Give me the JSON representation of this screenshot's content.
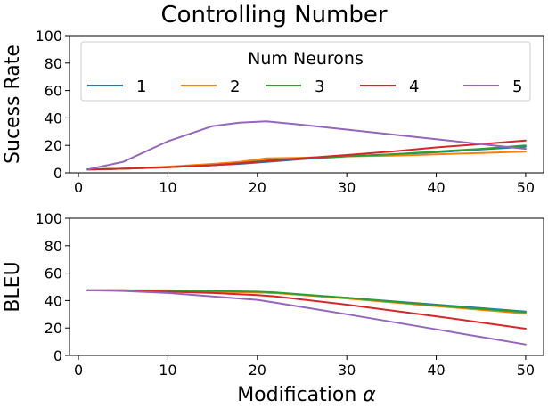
{
  "chart_data": {
    "title": "Controlling Number",
    "legend": {
      "title": "Num Neurons",
      "placement": "top"
    },
    "xlabel_text": "Modification ",
    "xlabel_symbol": "α",
    "xlim": [
      -1,
      52
    ],
    "xticks": [
      "0",
      "10",
      "20",
      "30",
      "40",
      "50"
    ],
    "panels": [
      {
        "type": "line",
        "ylabel": "Sucess Rate",
        "ylim": [
          0,
          100
        ],
        "yticks": [
          "0",
          "20",
          "40",
          "60",
          "80",
          "100"
        ],
        "series": [
          {
            "name": "1",
            "color": "#1f77b4",
            "x": [
              1,
              5,
              10,
              15,
              18,
              21,
              25,
              30,
              35,
              40,
              45,
              50
            ],
            "y": [
              2.5,
              3,
              4,
              5.5,
              6.5,
              8,
              10,
              12,
              13.5,
              15,
              17,
              19
            ]
          },
          {
            "name": "2",
            "color": "#ff7f0e",
            "x": [
              1,
              5,
              10,
              15,
              18,
              21,
              25,
              30,
              35,
              40,
              45,
              50
            ],
            "y": [
              2.5,
              3,
              4.5,
              6.5,
              8,
              10.5,
              11,
              12,
              12.5,
              13.5,
              14.5,
              15.5
            ]
          },
          {
            "name": "3",
            "color": "#2ca02c",
            "x": [
              1,
              5,
              10,
              15,
              18,
              21,
              25,
              30,
              35,
              40,
              45,
              50
            ],
            "y": [
              2.5,
              3,
              4,
              5.5,
              7,
              9,
              10.5,
              12,
              13.5,
              15.5,
              17.5,
              20
            ]
          },
          {
            "name": "4",
            "color": "#d62728",
            "x": [
              1,
              5,
              10,
              15,
              18,
              21,
              25,
              30,
              35,
              40,
              45,
              50
            ],
            "y": [
              2.5,
              3,
              4,
              5.5,
              7,
              8.5,
              10.5,
              13,
              15.5,
              18.5,
              21,
              23.5
            ]
          },
          {
            "name": "5",
            "color": "#9467bd",
            "x": [
              1,
              5,
              10,
              15,
              18,
              21,
              25,
              30,
              35,
              40,
              45,
              50
            ],
            "y": [
              2.5,
              8,
              23,
              34,
              36.5,
              37.5,
              35,
              31.5,
              28,
              24.5,
              21,
              17.5
            ]
          }
        ]
      },
      {
        "type": "line",
        "ylabel": "BLEU",
        "ylim": [
          0,
          100
        ],
        "yticks": [
          "0",
          "20",
          "40",
          "60",
          "80",
          "100"
        ],
        "series": [
          {
            "name": "1",
            "color": "#1f77b4",
            "x": [
              1,
              5,
              10,
              15,
              20,
              22,
              30,
              40,
              50
            ],
            "y": [
              47.5,
              47.5,
              47,
              46.5,
              46,
              45.5,
              42,
              37,
              32
            ]
          },
          {
            "name": "2",
            "color": "#ff7f0e",
            "x": [
              1,
              5,
              10,
              15,
              20,
              22,
              30,
              40,
              50
            ],
            "y": [
              47.5,
              47.5,
              47,
              46.5,
              46,
              45.5,
              41.5,
              36,
              30.5
            ]
          },
          {
            "name": "3",
            "color": "#2ca02c",
            "x": [
              1,
              5,
              10,
              15,
              20,
              22,
              30,
              40,
              50
            ],
            "y": [
              47.5,
              47.5,
              47.5,
              47,
              46.5,
              46,
              42,
              36.5,
              31.5
            ]
          },
          {
            "name": "4",
            "color": "#d62728",
            "x": [
              1,
              5,
              10,
              15,
              20,
              22,
              30,
              40,
              50
            ],
            "y": [
              47.5,
              47.5,
              46.5,
              45.5,
              44,
              43,
              37,
              28.5,
              19.5
            ]
          },
          {
            "name": "5",
            "color": "#9467bd",
            "x": [
              1,
              5,
              10,
              15,
              20,
              22,
              30,
              40,
              50
            ],
            "y": [
              47.5,
              47,
              45.5,
              43,
              40.5,
              38.5,
              30,
              19,
              8
            ]
          }
        ]
      }
    ]
  }
}
